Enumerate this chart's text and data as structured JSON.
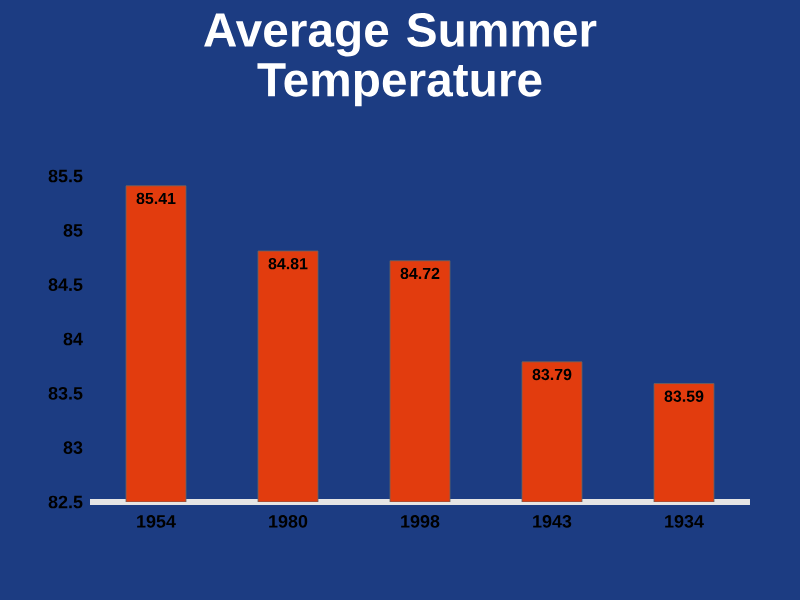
{
  "chart_data": {
    "type": "bar",
    "title": "Average Summer Temperature",
    "categories": [
      "1954",
      "1980",
      "1998",
      "1943",
      "1934"
    ],
    "values": [
      85.41,
      84.81,
      84.72,
      83.79,
      83.59
    ],
    "color": "#e23c0e",
    "ylim": [
      82.5,
      85.5
    ],
    "yticks": [
      82.5,
      83,
      83.5,
      84,
      84.5,
      85,
      85.5
    ],
    "data_labels": true
  }
}
